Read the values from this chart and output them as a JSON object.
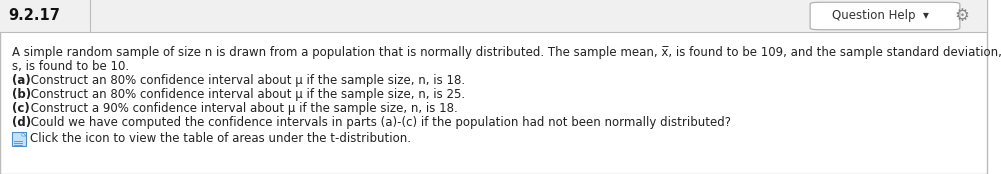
{
  "problem_number": "9.2.17",
  "question_help_text": "Question Help",
  "bg_color": "#ffffff",
  "header_bg": "#f0f0f0",
  "border_color": "#bbbbbb",
  "text_color": "#222222",
  "gear_color": "#888888",
  "icon_color": "#4a8fcc",
  "icon_bg": "#c8e0f4",
  "line1a": "A simple random sample of size n is drawn from a population that is normally distributed. The sample mean, ",
  "line1b": "x",
  "line1c": ", is found to be 109, and the sample standard deviation,",
  "line2": "s, is found to be 10.",
  "lines": [
    [
      "(a)",
      " Construct an 80% confidence interval about μ if the sample size, n, is 18."
    ],
    [
      "(b)",
      " Construct an 80% confidence interval about μ if the sample size, n, is 25."
    ],
    [
      "(c)",
      " Construct a 90% confidence interval about μ if the sample size, n, is 18."
    ],
    [
      "(d)",
      " Could we have computed the confidence intervals in parts (a)-(c) if the population had not been normally distributed?"
    ]
  ],
  "line_e": "Click the icon to view the table of areas under the t-distribution.",
  "figsize": [
    9.87,
    1.74
  ],
  "dpi": 100
}
